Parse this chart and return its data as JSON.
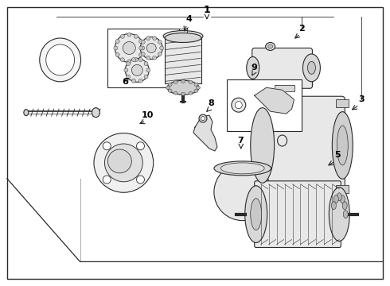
{
  "bg_color": "#ffffff",
  "line_color": "#2a2a2a",
  "label_color": "#000000",
  "fig_width": 4.9,
  "fig_height": 3.6,
  "dpi": 100,
  "border_color": "#444444"
}
